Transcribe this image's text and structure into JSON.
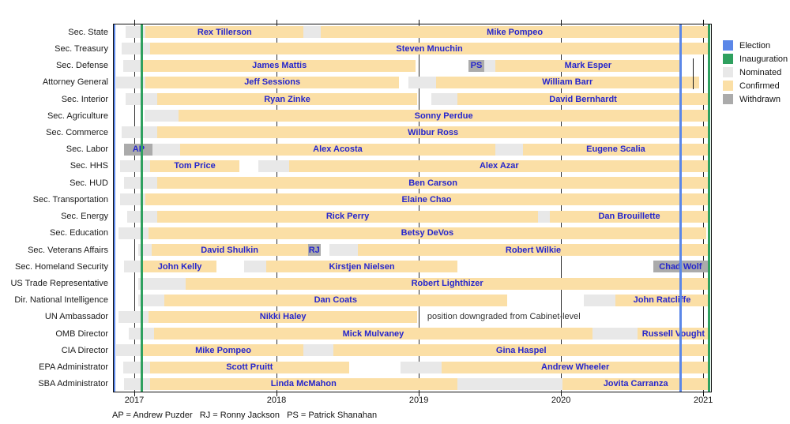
{
  "colors": {
    "election": "#5b87e8",
    "inauguration": "#2fa05f",
    "nominated": "#e8e8e8",
    "confirmed": "#fbdfa6",
    "withdrawn": "#ababab",
    "bar_label": "#2626cc",
    "axis": "#111111",
    "annotation": "#333333"
  },
  "chart_data": {
    "type": "timeline-gantt",
    "title": "",
    "x_axis": {
      "domain": [
        2016.85,
        2021.06
      ],
      "ticks": [
        2017,
        2018,
        2019,
        2020,
        2021
      ],
      "tick_labels": [
        "2017",
        "2018",
        "2019",
        "2020",
        "2021"
      ]
    },
    "events": {
      "election": [
        2016.856,
        2020.84
      ],
      "inauguration": [
        2017.055,
        2021.04
      ]
    },
    "legend": [
      {
        "label": "Election",
        "key": "election"
      },
      {
        "label": "Inauguration",
        "key": "inauguration"
      },
      {
        "label": "Nominated",
        "key": "nominated"
      },
      {
        "label": "Confirmed",
        "key": "confirmed"
      },
      {
        "label": "Withdrawn",
        "key": "withdrawn"
      }
    ],
    "rows": [
      {
        "label": "Sec. State",
        "segments": [
          {
            "status": "nominated",
            "start": 2016.94,
            "end": 2017.08
          },
          {
            "status": "confirmed",
            "start": 2017.08,
            "end": 2018.19,
            "person": "Rex Tillerson"
          },
          {
            "status": "nominated",
            "start": 2018.19,
            "end": 2018.31
          },
          {
            "status": "confirmed",
            "start": 2018.31,
            "end": 2021.04,
            "person": "Mike Pompeo"
          }
        ]
      },
      {
        "label": "Sec. Treasury",
        "segments": [
          {
            "status": "nominated",
            "start": 2016.91,
            "end": 2017.11
          },
          {
            "status": "confirmed",
            "start": 2017.11,
            "end": 2021.04,
            "person": "Steven Mnuchin"
          }
        ]
      },
      {
        "label": "Sec. Defense",
        "segments": [
          {
            "status": "nominated",
            "start": 2016.92,
            "end": 2017.06
          },
          {
            "status": "confirmed",
            "start": 2017.06,
            "end": 2018.98,
            "person": "James Mattis"
          },
          {
            "status": "withdrawn",
            "start": 2019.35,
            "end": 2019.46,
            "person": "PS"
          },
          {
            "status": "nominated",
            "start": 2019.46,
            "end": 2019.54
          },
          {
            "status": "confirmed",
            "start": 2019.54,
            "end": 2020.84,
            "person": "Mark Esper"
          }
        ]
      },
      {
        "label": "Attorney General",
        "segments": [
          {
            "status": "nominated",
            "start": 2016.87,
            "end": 2017.08
          },
          {
            "status": "confirmed",
            "start": 2017.08,
            "end": 2018.86,
            "person": "Jeff Sessions"
          },
          {
            "status": "nominated",
            "start": 2018.93,
            "end": 2019.12
          },
          {
            "status": "confirmed",
            "start": 2019.12,
            "end": 2020.97,
            "person": "William Barr"
          }
        ]
      },
      {
        "label": "Sec. Interior",
        "segments": [
          {
            "status": "nominated",
            "start": 2016.94,
            "end": 2017.16
          },
          {
            "status": "confirmed",
            "start": 2017.16,
            "end": 2018.99,
            "person": "Ryan Zinke"
          },
          {
            "status": "nominated",
            "start": 2019.09,
            "end": 2019.27
          },
          {
            "status": "confirmed",
            "start": 2019.27,
            "end": 2021.04,
            "person": "David Bernhardt"
          }
        ]
      },
      {
        "label": "Sec. Agriculture",
        "segments": [
          {
            "status": "nominated",
            "start": 2017.07,
            "end": 2017.31
          },
          {
            "status": "confirmed",
            "start": 2017.31,
            "end": 2021.04,
            "person": "Sonny Perdue"
          }
        ]
      },
      {
        "label": "Sec. Commerce",
        "segments": [
          {
            "status": "nominated",
            "start": 2016.91,
            "end": 2017.16
          },
          {
            "status": "confirmed",
            "start": 2017.16,
            "end": 2021.04,
            "person": "Wilbur Ross"
          }
        ]
      },
      {
        "label": "Sec. Labor",
        "segments": [
          {
            "status": "withdrawn",
            "start": 2016.93,
            "end": 2017.13,
            "person": "AP"
          },
          {
            "status": "nominated",
            "start": 2017.13,
            "end": 2017.32
          },
          {
            "status": "confirmed",
            "start": 2017.32,
            "end": 2019.54,
            "person": "Alex Acosta"
          },
          {
            "status": "nominated",
            "start": 2019.54,
            "end": 2019.73
          },
          {
            "status": "confirmed",
            "start": 2019.73,
            "end": 2021.04,
            "person": "Eugene Scalia"
          }
        ]
      },
      {
        "label": "Sec. HHS",
        "segments": [
          {
            "status": "nominated",
            "start": 2016.9,
            "end": 2017.11
          },
          {
            "status": "confirmed",
            "start": 2017.11,
            "end": 2017.74,
            "person": "Tom Price"
          },
          {
            "status": "nominated",
            "start": 2017.87,
            "end": 2018.09
          },
          {
            "status": "confirmed",
            "start": 2018.09,
            "end": 2021.04,
            "person": "Alex Azar"
          }
        ]
      },
      {
        "label": "Sec. HUD",
        "segments": [
          {
            "status": "nominated",
            "start": 2016.93,
            "end": 2017.16
          },
          {
            "status": "confirmed",
            "start": 2017.16,
            "end": 2021.04,
            "person": "Ben Carson"
          }
        ]
      },
      {
        "label": "Sec. Transportation",
        "segments": [
          {
            "status": "nominated",
            "start": 2016.9,
            "end": 2017.08
          },
          {
            "status": "confirmed",
            "start": 2017.08,
            "end": 2021.03,
            "person": "Elaine Chao"
          }
        ]
      },
      {
        "label": "Sec. Energy",
        "segments": [
          {
            "status": "nominated",
            "start": 2016.95,
            "end": 2017.16
          },
          {
            "status": "confirmed",
            "start": 2017.16,
            "end": 2019.84,
            "person": "Rick Perry"
          },
          {
            "status": "nominated",
            "start": 2019.84,
            "end": 2019.92
          },
          {
            "status": "confirmed",
            "start": 2019.92,
            "end": 2021.04,
            "person": "Dan Brouillette"
          }
        ]
      },
      {
        "label": "Sec. Education",
        "segments": [
          {
            "status": "nominated",
            "start": 2016.89,
            "end": 2017.1
          },
          {
            "status": "confirmed",
            "start": 2017.1,
            "end": 2021.02,
            "person": "Betsy DeVos"
          }
        ]
      },
      {
        "label": "Sec. Veterans Affairs",
        "segments": [
          {
            "status": "nominated",
            "start": 2017.03,
            "end": 2017.12
          },
          {
            "status": "confirmed",
            "start": 2017.12,
            "end": 2018.22,
            "person": "David Shulkin"
          },
          {
            "status": "withdrawn",
            "start": 2018.22,
            "end": 2018.31,
            "person": "RJ"
          },
          {
            "status": "nominated",
            "start": 2018.37,
            "end": 2018.57
          },
          {
            "status": "confirmed",
            "start": 2018.57,
            "end": 2021.04,
            "person": "Robert Wilkie"
          }
        ]
      },
      {
        "label": "Sec. Homeland Security",
        "segments": [
          {
            "status": "nominated",
            "start": 2016.93,
            "end": 2017.06
          },
          {
            "status": "confirmed",
            "start": 2017.06,
            "end": 2017.58,
            "person": "John Kelly"
          },
          {
            "status": "nominated",
            "start": 2017.77,
            "end": 2017.93
          },
          {
            "status": "confirmed",
            "start": 2017.93,
            "end": 2019.27,
            "person": "Kirstjen Nielsen"
          },
          {
            "status": "withdrawn",
            "start": 2020.65,
            "end": 2021.03,
            "person": "Chad Wolf"
          }
        ]
      },
      {
        "label": "US Trade Representative",
        "segments": [
          {
            "status": "nominated",
            "start": 2017.03,
            "end": 2017.36
          },
          {
            "status": "confirmed",
            "start": 2017.36,
            "end": 2021.04,
            "person": "Robert Lighthizer"
          }
        ]
      },
      {
        "label": "Dir. National Intelligence",
        "segments": [
          {
            "status": "nominated",
            "start": 2017.03,
            "end": 2017.21
          },
          {
            "status": "confirmed",
            "start": 2017.21,
            "end": 2019.62,
            "person": "Dan Coats"
          },
          {
            "status": "nominated",
            "start": 2020.16,
            "end": 2020.38
          },
          {
            "status": "confirmed",
            "start": 2020.38,
            "end": 2021.04,
            "person": "John Ratcliffe"
          }
        ]
      },
      {
        "label": "UN Ambassador",
        "segments": [
          {
            "status": "nominated",
            "start": 2016.89,
            "end": 2017.1
          },
          {
            "status": "confirmed",
            "start": 2017.1,
            "end": 2018.99,
            "person": "Nikki Haley"
          }
        ]
      },
      {
        "label": "OMB Director",
        "segments": [
          {
            "status": "nominated",
            "start": 2016.96,
            "end": 2017.14
          },
          {
            "status": "confirmed",
            "start": 2017.14,
            "end": 2020.22,
            "person": "Mick Mulvaney"
          },
          {
            "status": "nominated",
            "start": 2020.22,
            "end": 2020.54
          },
          {
            "status": "confirmed",
            "start": 2020.54,
            "end": 2021.04,
            "person": "Russell Vought"
          }
        ]
      },
      {
        "label": "CIA Director",
        "segments": [
          {
            "status": "nominated",
            "start": 2016.87,
            "end": 2017.06
          },
          {
            "status": "confirmed",
            "start": 2017.06,
            "end": 2018.19,
            "person": "Mike Pompeo"
          },
          {
            "status": "nominated",
            "start": 2018.19,
            "end": 2018.4
          },
          {
            "status": "confirmed",
            "start": 2018.4,
            "end": 2021.04,
            "person": "Gina Haspel"
          }
        ]
      },
      {
        "label": "EPA Administrator",
        "segments": [
          {
            "status": "nominated",
            "start": 2016.92,
            "end": 2017.11
          },
          {
            "status": "confirmed",
            "start": 2017.11,
            "end": 2018.51,
            "person": "Scott Pruitt"
          },
          {
            "status": "nominated",
            "start": 2018.87,
            "end": 2019.16
          },
          {
            "status": "confirmed",
            "start": 2019.16,
            "end": 2021.04,
            "person": "Andrew Wheeler"
          }
        ]
      },
      {
        "label": "SBA Administrator",
        "segments": [
          {
            "status": "nominated",
            "start": 2016.93,
            "end": 2017.11
          },
          {
            "status": "confirmed",
            "start": 2017.11,
            "end": 2019.27,
            "person": "Linda McMahon"
          },
          {
            "status": "nominated",
            "start": 2019.27,
            "end": 2020.01
          },
          {
            "status": "confirmed",
            "start": 2020.01,
            "end": 2021.04,
            "person": "Jovita Carranza"
          }
        ]
      }
    ],
    "annotations": [
      {
        "text": "position downgraded from Cabinet-level",
        "row": "UN Ambassador",
        "start": 2019.06
      }
    ],
    "marker_line": {
      "year": 2020.93,
      "start_row": "Sec. Defense",
      "end_row": "Attorney General"
    },
    "footnote": "AP = Andrew Puzder   RJ = Ronny Jackson   PS = Patrick Shanahan"
  }
}
